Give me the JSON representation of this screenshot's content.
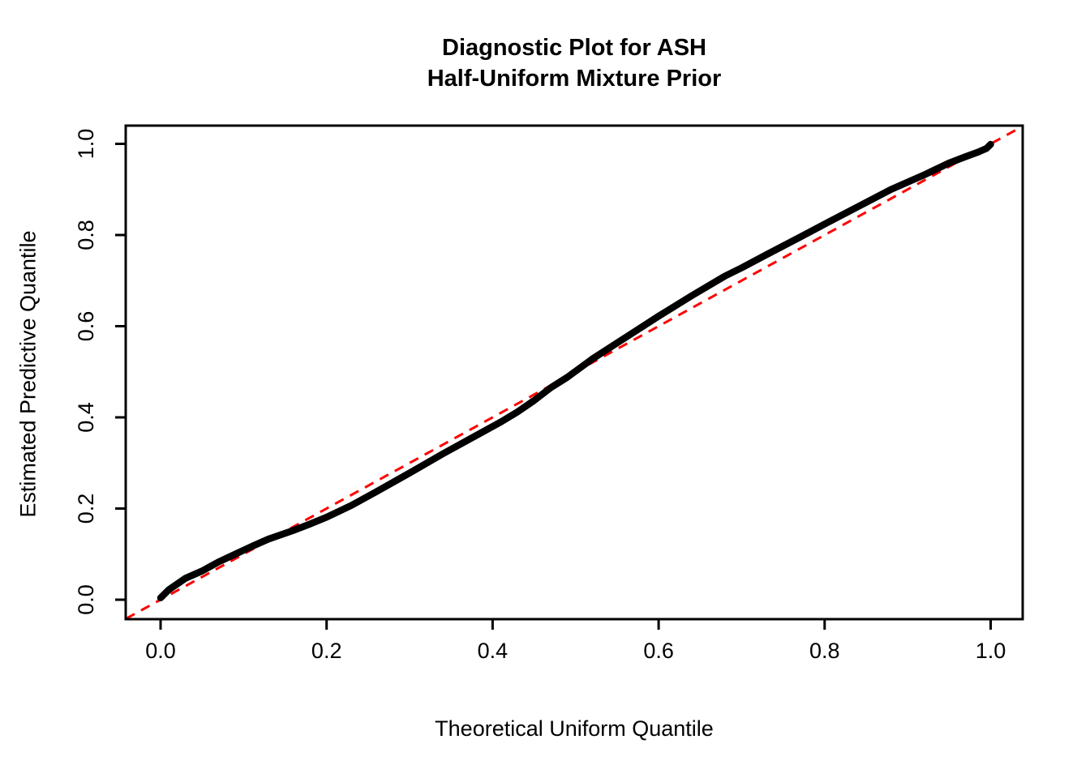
{
  "figure": {
    "title_line1": "Diagnostic Plot for ASH",
    "title_line2": "Half-Uniform Mixture Prior",
    "xlabel": "Theoretical Uniform Quantile",
    "ylabel": "Estimated Predictive Quantile",
    "background_color": "#FFFFFF",
    "axis_color": "#000000"
  },
  "chart_data": {
    "type": "scatter",
    "title": "Diagnostic Plot for ASH\nHalf-Uniform Mixture Prior",
    "xlabel": "Theoretical Uniform Quantile",
    "ylabel": "Estimated Predictive Quantile",
    "xlim": [
      0,
      1
    ],
    "ylim": [
      0,
      1
    ],
    "axis_expansion": 0.04,
    "grid": false,
    "legend": "none",
    "x_tick_values": [
      0.0,
      0.2,
      0.4,
      0.6,
      0.8,
      1.0
    ],
    "x_tick_labels": [
      "0.0",
      "0.2",
      "0.4",
      "0.6",
      "0.8",
      "1.0"
    ],
    "y_tick_values": [
      0.0,
      0.2,
      0.4,
      0.6,
      0.8,
      1.0
    ],
    "y_tick_labels": [
      "0.0",
      "0.2",
      "0.4",
      "0.6",
      "0.8",
      "1.0"
    ],
    "series": [
      {
        "name": "estimated-predictive-quantiles",
        "marker": "dense-filled-points",
        "color": "#000000",
        "points": [
          [
            0.0,
            0.004
          ],
          [
            0.01,
            0.022
          ],
          [
            0.03,
            0.047
          ],
          [
            0.05,
            0.063
          ],
          [
            0.07,
            0.083
          ],
          [
            0.09,
            0.1
          ],
          [
            0.11,
            0.117
          ],
          [
            0.13,
            0.133
          ],
          [
            0.16,
            0.152
          ],
          [
            0.18,
            0.166
          ],
          [
            0.2,
            0.181
          ],
          [
            0.23,
            0.207
          ],
          [
            0.26,
            0.237
          ],
          [
            0.3,
            0.278
          ],
          [
            0.34,
            0.32
          ],
          [
            0.38,
            0.36
          ],
          [
            0.41,
            0.39
          ],
          [
            0.43,
            0.412
          ],
          [
            0.45,
            0.437
          ],
          [
            0.47,
            0.465
          ],
          [
            0.49,
            0.488
          ],
          [
            0.52,
            0.528
          ],
          [
            0.56,
            0.575
          ],
          [
            0.6,
            0.622
          ],
          [
            0.64,
            0.667
          ],
          [
            0.68,
            0.71
          ],
          [
            0.7,
            0.728
          ],
          [
            0.73,
            0.757
          ],
          [
            0.77,
            0.795
          ],
          [
            0.8,
            0.824
          ],
          [
            0.84,
            0.862
          ],
          [
            0.88,
            0.9
          ],
          [
            0.92,
            0.932
          ],
          [
            0.95,
            0.958
          ],
          [
            0.97,
            0.972
          ],
          [
            0.985,
            0.982
          ],
          [
            0.995,
            0.99
          ],
          [
            1.0,
            0.999
          ]
        ]
      }
    ],
    "reference_line": {
      "name": "identity-line",
      "equation": "y = x",
      "color": "#FF0000",
      "style": "dashed",
      "from": [
        0,
        0
      ],
      "to": [
        1,
        1
      ]
    }
  }
}
